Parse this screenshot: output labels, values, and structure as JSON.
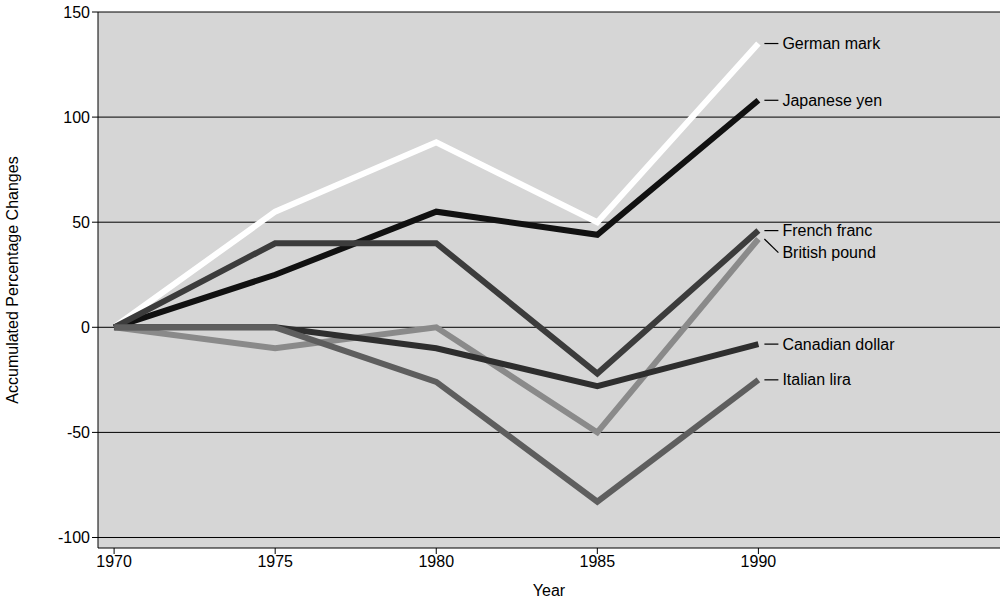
{
  "chart_data": {
    "type": "line",
    "x": [
      1970,
      1975,
      1980,
      1985,
      1990
    ],
    "xlim": [
      1969.5,
      1997.5
    ],
    "xticks": [
      1970,
      1975,
      1980,
      1985,
      1990
    ],
    "ylim": [
      -105,
      150
    ],
    "yticks": [
      -100,
      -50,
      0,
      50,
      100,
      150
    ],
    "x_label": "Year",
    "y_label": "Accumulated Percentage Changes",
    "grid": true,
    "series": [
      {
        "name": "German mark",
        "color": "#ffffff",
        "values": [
          0,
          55,
          88,
          50,
          135
        ]
      },
      {
        "name": "Japanese yen",
        "color": "#111111",
        "values": [
          0,
          25,
          55,
          44,
          108
        ]
      },
      {
        "name": "French franc",
        "color": "#3c3c3c",
        "values": [
          0,
          40,
          40,
          -22,
          46
        ]
      },
      {
        "name": "British pound",
        "color": "#8a8a8a",
        "values": [
          0,
          -10,
          0,
          -50,
          42
        ]
      },
      {
        "name": "Canadian dollar",
        "color": "#2e2e2e",
        "values": [
          0,
          0,
          -10,
          -28,
          -8
        ]
      },
      {
        "name": "Italian lira",
        "color": "#5e5e5e",
        "values": [
          0,
          0,
          -26,
          -83,
          -25
        ]
      }
    ]
  }
}
